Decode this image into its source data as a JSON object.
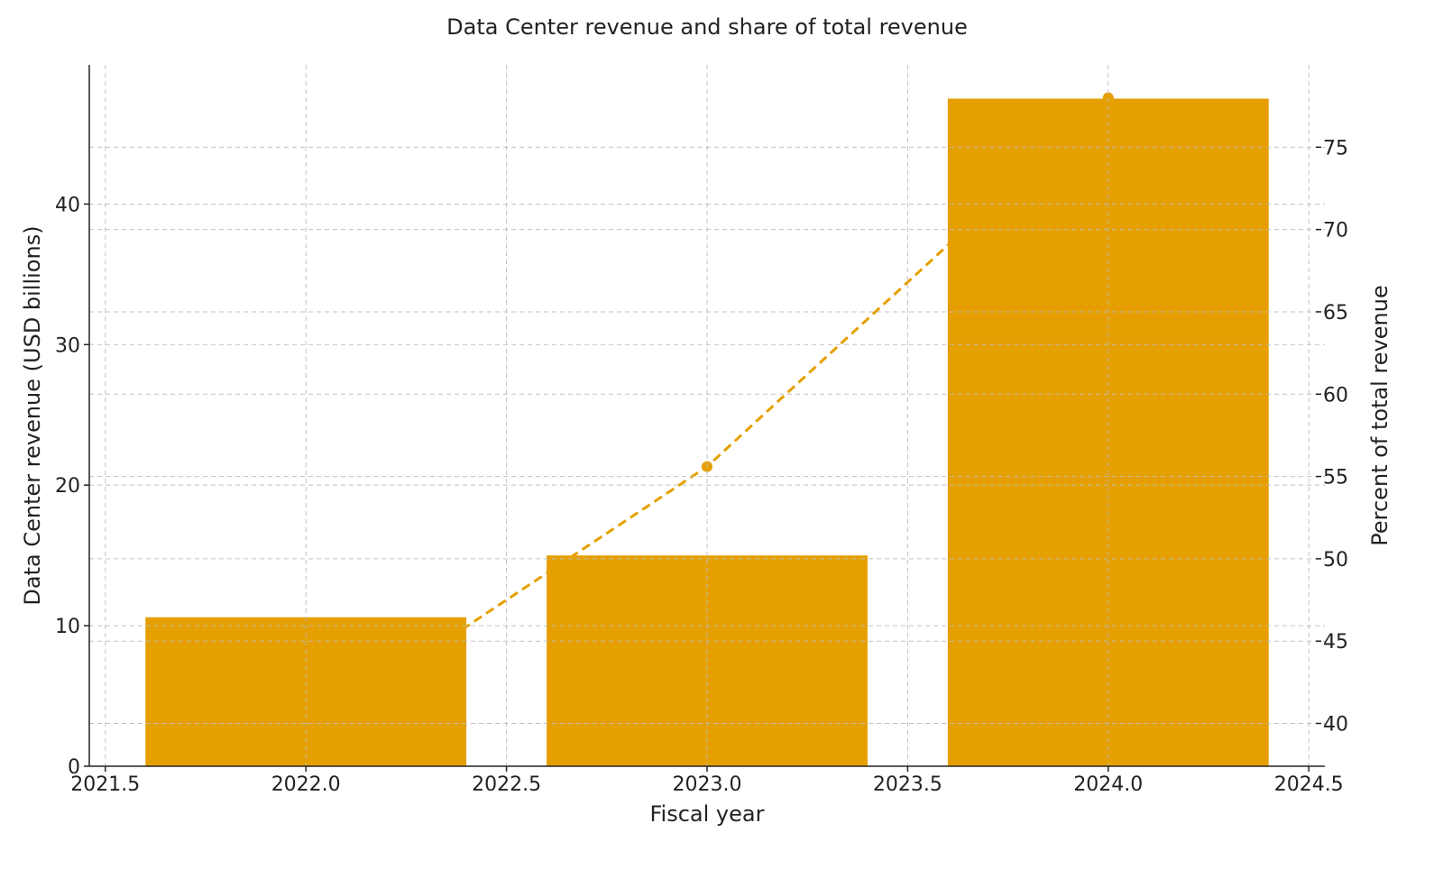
{
  "chart_data": {
    "type": "bar+line",
    "title": "Data Center revenue and share of total revenue",
    "xlabel": "Fiscal year",
    "ylabel": "Data Center revenue (USD billions)",
    "y2label": "Percent of total revenue",
    "x": [
      2022,
      2023,
      2024
    ],
    "bar_series": {
      "values": [
        10.6,
        15.0,
        47.5
      ],
      "color": "#E69F00"
    },
    "line_series": {
      "values": [
        39.4,
        55.6,
        78.0
      ],
      "color": "#E69F00",
      "style": "dashed",
      "marker": "circle"
    },
    "xlim": [
      2021.46,
      2024.54
    ],
    "ylim": [
      0,
      49.9
    ],
    "y2lim": [
      37.4,
      80.0
    ],
    "xticks": [
      "2021.5",
      "2022.0",
      "2022.5",
      "2023.0",
      "2023.5",
      "2024.0",
      "2024.5"
    ],
    "yticks": [
      "0",
      "10",
      "20",
      "30",
      "40"
    ],
    "y2ticks": [
      "40",
      "45",
      "50",
      "55",
      "60",
      "65",
      "70",
      "75"
    ],
    "grid": true
  }
}
